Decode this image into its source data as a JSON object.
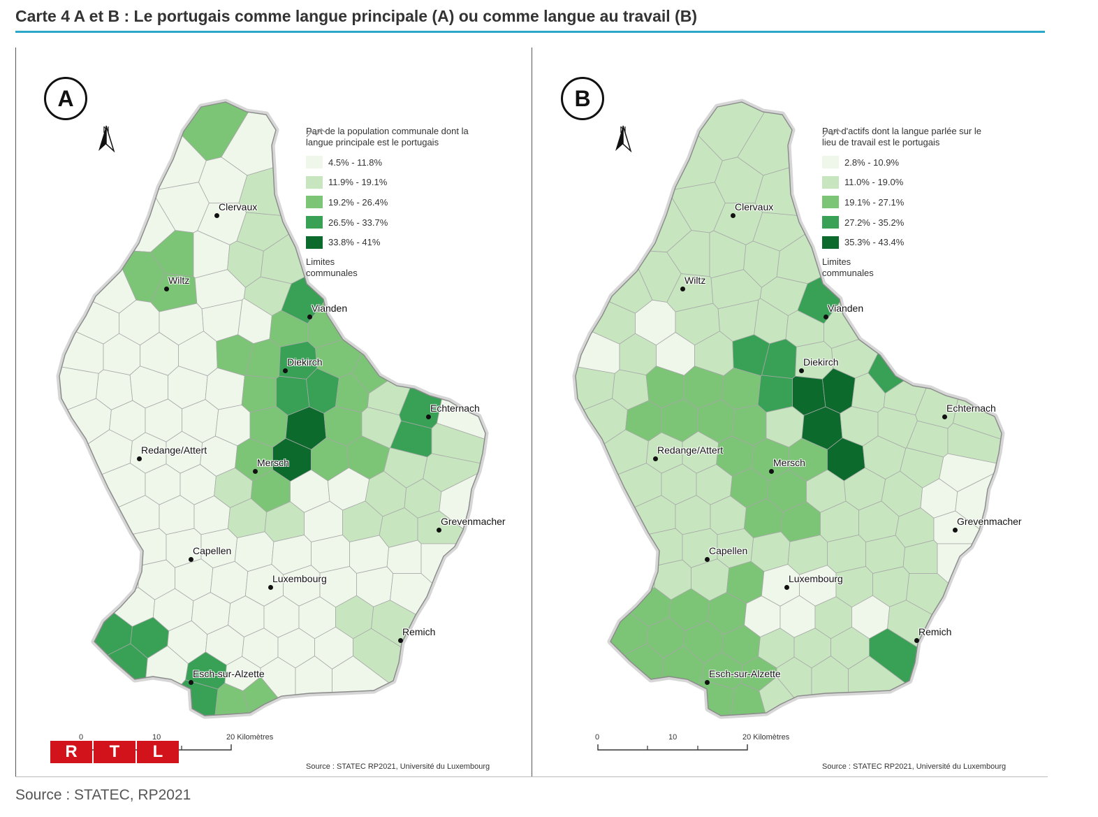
{
  "title": "Carte 4 A et B : Le portugais comme langue principale (A) ou comme langue au travail (B)",
  "footer_source": "Source : STATEC, RP2021",
  "logo": {
    "letters": [
      "R",
      "T",
      "L"
    ],
    "color": "#d3131b"
  },
  "panels": [
    {
      "id": "A",
      "letter": "A",
      "north": "N",
      "legend": {
        "title": "Part de la population communale dont la langue principale est le portugais",
        "classes": [
          {
            "label": "4.5% - 11.8%",
            "color": "#eef7ea"
          },
          {
            "label": "11.9% - 19.1%",
            "color": "#c7e6bf"
          },
          {
            "label": "19.2% - 26.4%",
            "color": "#7cc576"
          },
          {
            "label": "26.5% - 33.7%",
            "color": "#38a155"
          },
          {
            "label": "33.8% - 41%",
            "color": "#0b6a2c"
          }
        ],
        "limits_label": "Limites communales"
      },
      "cities": [
        "Clervaux",
        "Wiltz",
        "Vianden",
        "Diekirch",
        "Echternach",
        "Redange/Attert",
        "Mersch",
        "Grevenmacher",
        "Capellen",
        "Luxembourg",
        "Remich",
        "Esch-sur-Alzette"
      ],
      "scale": {
        "ticks": [
          "0",
          "10",
          "20 Kilomètres"
        ]
      },
      "source": "Source : STATEC RP2021, Université du Luxembourg"
    },
    {
      "id": "B",
      "letter": "B",
      "north": "N",
      "legend": {
        "title": "Part d'actifs dont la langue parlée sur le lieu de travail est le portugais",
        "classes": [
          {
            "label": "2.8% - 10.9%",
            "color": "#eef7ea"
          },
          {
            "label": "11.0% - 19.0%",
            "color": "#c7e6bf"
          },
          {
            "label": "19.1% - 27.1%",
            "color": "#7cc576"
          },
          {
            "label": "27.2% - 35.2%",
            "color": "#38a155"
          },
          {
            "label": "35.3% - 43.4%",
            "color": "#0b6a2c"
          }
        ],
        "limits_label": "Limites communales"
      },
      "cities": [
        "Clervaux",
        "Wiltz",
        "Vianden",
        "Diekirch",
        "Echternach",
        "Redange/Attert",
        "Mersch",
        "Grevenmacher",
        "Capellen",
        "Luxembourg",
        "Remich",
        "Esch-sur-Alzette"
      ],
      "scale": {
        "ticks": [
          "0",
          "10",
          "20 Kilomètres"
        ]
      },
      "source": "Source : STATEC RP2021, Université du Luxembourg"
    }
  ]
}
